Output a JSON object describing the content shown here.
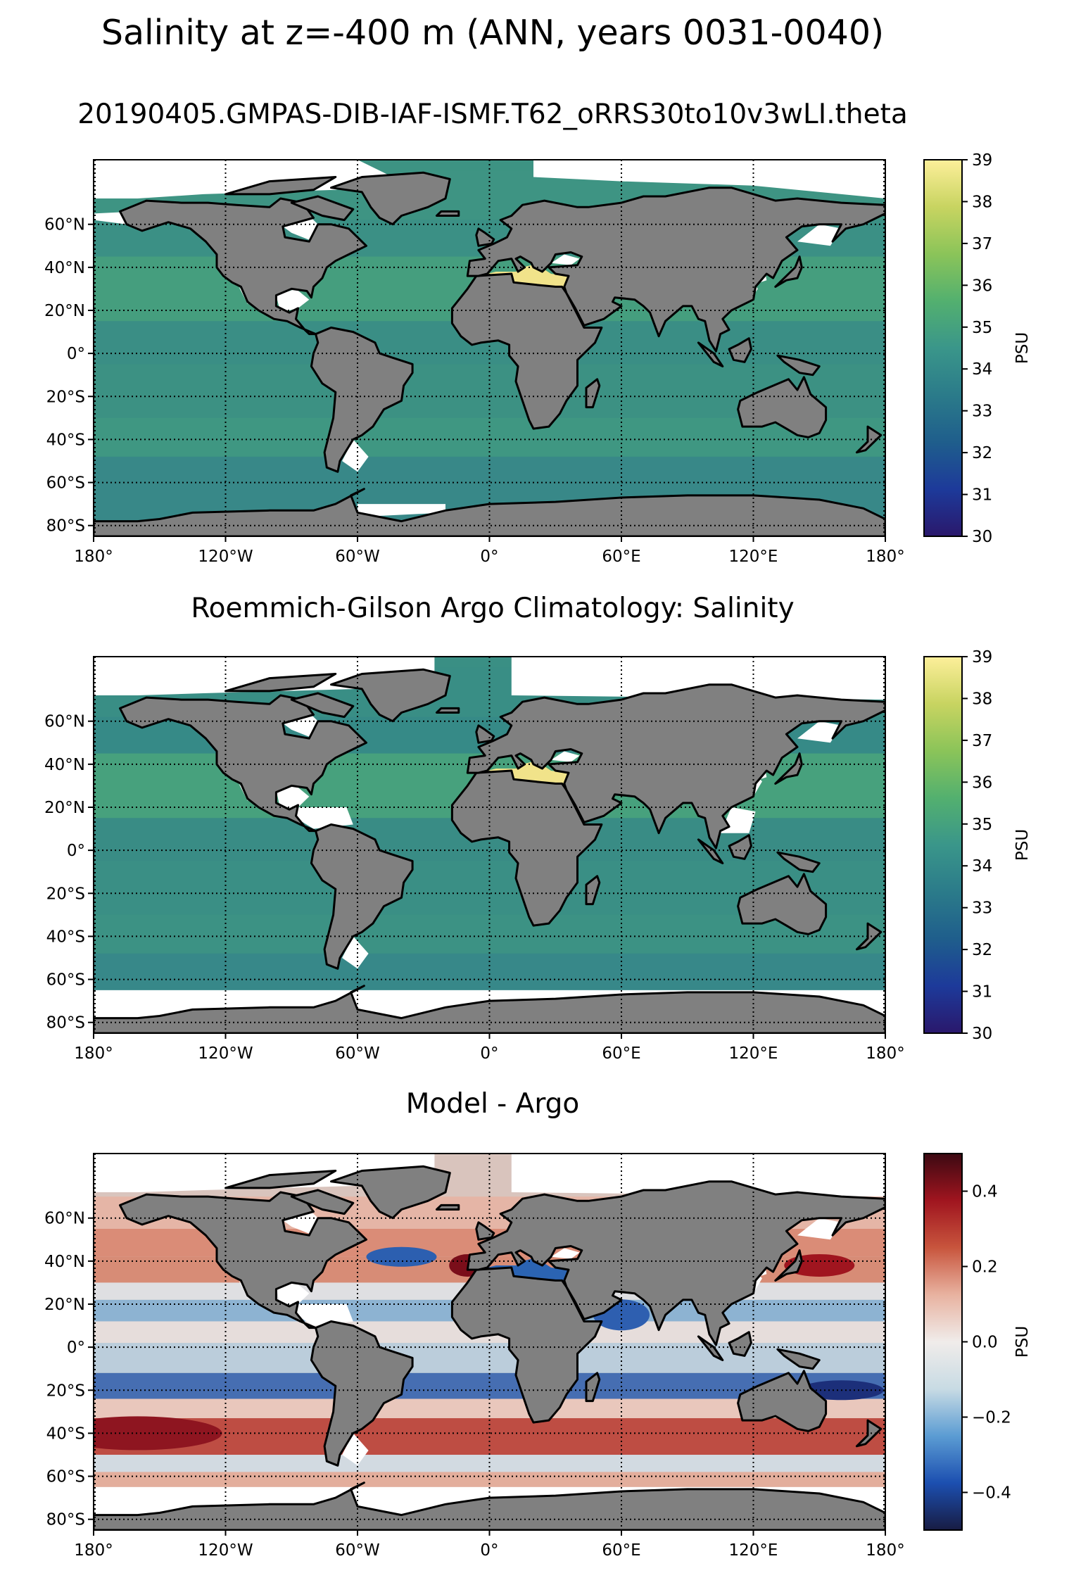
{
  "figure": {
    "title": "Salinity at z=-400 m (ANN, years 0031-0040)"
  },
  "axes": {
    "lon_ticks": [
      "180°",
      "120°W",
      "60°W",
      "0°",
      "60°E",
      "120°E",
      "180°"
    ],
    "lat_ticks": [
      "60°N",
      "40°N",
      "20°N",
      "0°",
      "20°S",
      "40°S",
      "60°S",
      "80°S"
    ]
  },
  "panels": [
    {
      "title": "20190405.GMPAS-DIB-IAF-ISMF.T62_oRRS30to10v3wLI.theta",
      "colorbar": {
        "label": "PSU",
        "min": 30,
        "max": 39,
        "ticks": [
          "39",
          "38",
          "37",
          "36",
          "35",
          "34",
          "33",
          "32",
          "31",
          "30"
        ],
        "colormap": "haline"
      },
      "ocean_color": "#3d9383"
    },
    {
      "title": "Roemmich-Gilson Argo Climatology: Salinity",
      "colorbar": {
        "label": "PSU",
        "min": 30,
        "max": 39,
        "ticks": [
          "39",
          "38",
          "37",
          "36",
          "35",
          "34",
          "33",
          "32",
          "31",
          "30"
        ],
        "colormap": "haline"
      },
      "ocean_color": "#3a8f84"
    },
    {
      "title": "Model - Argo",
      "colorbar": {
        "label": "PSU",
        "min": -0.5,
        "max": 0.5,
        "ticks": [
          "0.4",
          "0.2",
          "0.0",
          "−0.2",
          "−0.4"
        ],
        "colormap": "balance"
      },
      "ocean_color": "#d9c4bd"
    }
  ],
  "colors": {
    "land": "#808080",
    "haline": [
      "#2a186c",
      "#1d3a9a",
      "#1f5e8c",
      "#2b7b8a",
      "#3a968a",
      "#53b06f",
      "#8bc459",
      "#c8d461",
      "#fdef9a"
    ],
    "balance": [
      "#181c43",
      "#1c4fb0",
      "#5b9cd3",
      "#c8dbe4",
      "#f0ecea",
      "#e8b2a0",
      "#c8553d",
      "#a0151f",
      "#3c0912"
    ],
    "mediterranean": "#f1e38a"
  }
}
